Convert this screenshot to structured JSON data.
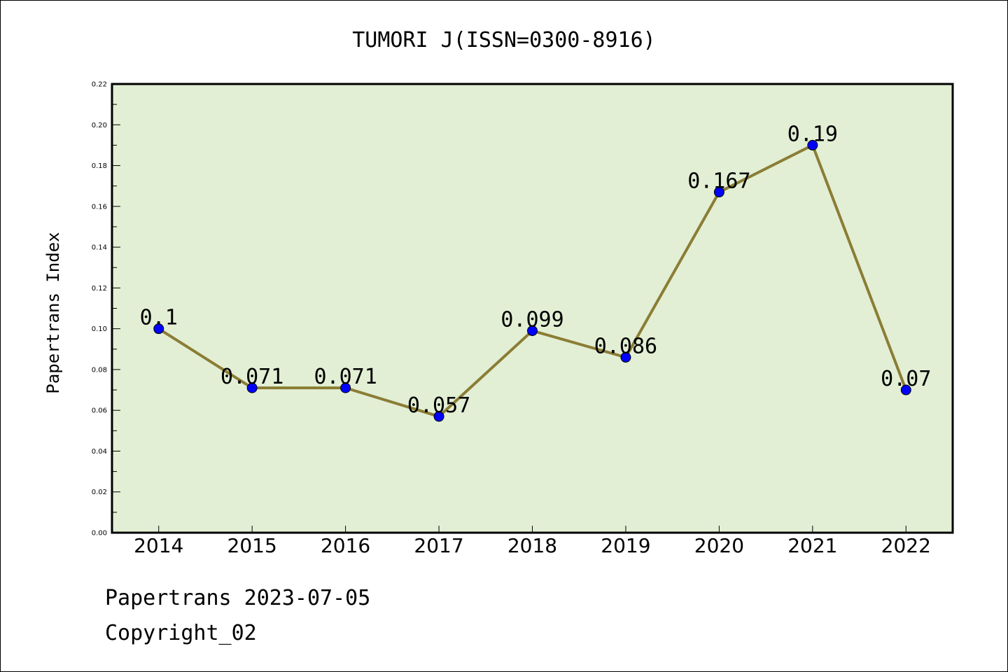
{
  "chart_data": {
    "type": "line",
    "title": "TUMORI J(ISSN=0300-8916)",
    "ylabel": "Papertrans Index",
    "xlabel": "",
    "categories": [
      "2014",
      "2015",
      "2016",
      "2017",
      "2018",
      "2019",
      "2020",
      "2021",
      "2022"
    ],
    "values": [
      0.1,
      0.071,
      0.071,
      0.057,
      0.099,
      0.086,
      0.167,
      0.19,
      0.07
    ],
    "data_labels": [
      "0.1",
      "0.071",
      "0.071",
      "0.057",
      "0.099",
      "0.086",
      "0.167",
      "0.19",
      "0.07"
    ],
    "ylim": [
      0,
      0.22
    ],
    "yticks": [
      "0.00",
      "0.02",
      "0.04",
      "0.06",
      "0.08",
      "0.10",
      "0.12",
      "0.14",
      "0.16",
      "0.18",
      "0.20",
      "0.22"
    ],
    "grid": false,
    "colors": {
      "plot_background": "#e2efd5",
      "line": "#8b7d35",
      "marker": "#0000ff"
    }
  },
  "footer": {
    "line1": "Papertrans 2023-07-05",
    "line2": "Copyright_02"
  }
}
